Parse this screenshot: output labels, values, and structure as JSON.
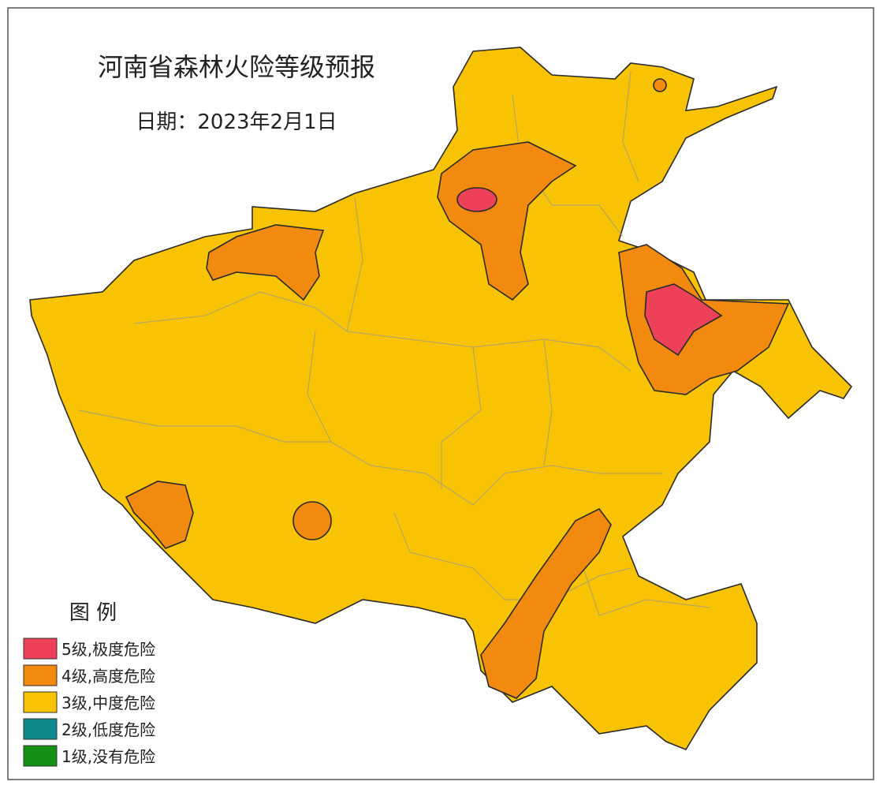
{
  "header": {
    "title": "河南省森林火险等级预报",
    "date": "日期：2023年2月1日"
  },
  "legend": {
    "title": "图 例",
    "items": [
      {
        "label": "5级,极度危险",
        "color": "#ec4158"
      },
      {
        "label": "4级,高度危险",
        "color": "#f28a10"
      },
      {
        "label": "3级,中度危险",
        "color": "#f8c303"
      },
      {
        "label": "2级,低度危险",
        "color": "#0f8a8c"
      },
      {
        "label": "1级,没有危险",
        "color": "#149114"
      }
    ]
  }
}
